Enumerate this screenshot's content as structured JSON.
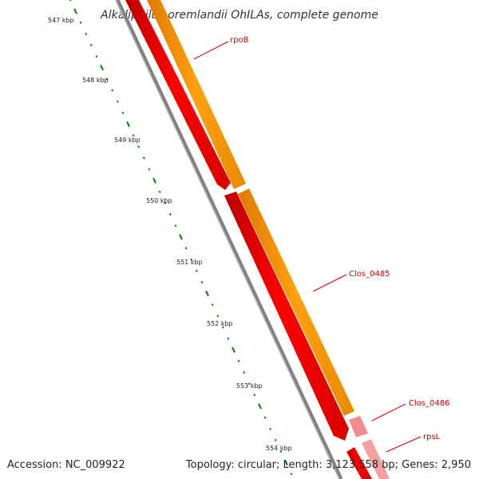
{
  "title": "Alkaliphilus oremlandii OhILAs, complete genome",
  "accession": "Accession: NC_009922",
  "summary": "Topology: circular; Length: 3,123,558 bp; Genes: 2,950",
  "ticks": [
    "547 kbp",
    "548 kbp",
    "549 kbp",
    "550 kbp",
    "551 kbp",
    "552 kbp",
    "553 kbp",
    "554 kbp"
  ],
  "features": [
    {
      "label": "rpoB",
      "color": "#cc0000"
    },
    {
      "label": "Clos_0485",
      "color": "#cc0000"
    },
    {
      "label": "Clos_0486",
      "color": "#cc0000"
    },
    {
      "label": "rpsL",
      "color": "#cc0000"
    }
  ],
  "colors": {
    "backbone": "#808080",
    "cds_strand": "#ff0000",
    "orange_track": "#ff9900",
    "pink_track": "#f08080",
    "tick": "#008000"
  }
}
